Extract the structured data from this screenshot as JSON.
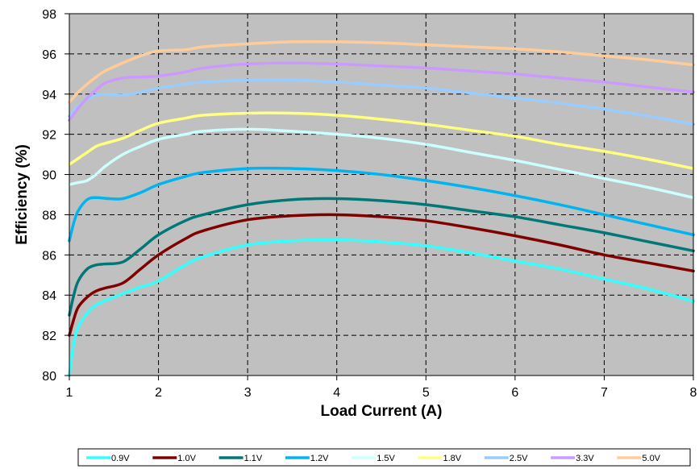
{
  "chart_data": {
    "type": "line",
    "title": "",
    "xlabel": "Load Current (A)",
    "ylabel": "Efficiency  (%)",
    "xlim": [
      1,
      8
    ],
    "ylim": [
      80,
      98
    ],
    "xticks": [
      1,
      2,
      3,
      4,
      5,
      6,
      7,
      8
    ],
    "yticks": [
      80,
      82,
      84,
      86,
      88,
      90,
      92,
      94,
      96,
      98
    ],
    "grid": true,
    "plot_background": "#c0c0c0",
    "legend_position": "bottom",
    "series": [
      {
        "name": "0.9V",
        "color": "#33ffff",
        "x": [
          1,
          1.05,
          1.1,
          1.2,
          1.3,
          1.5,
          1.8,
          2,
          2.3,
          2.5,
          3,
          3.5,
          4,
          4.5,
          5,
          5.5,
          6,
          6.5,
          7,
          7.5,
          8
        ],
        "y": [
          80,
          81.6,
          82.4,
          83.1,
          83.5,
          83.9,
          84.4,
          84.7,
          85.5,
          85.9,
          86.5,
          86.7,
          86.75,
          86.65,
          86.45,
          86.1,
          85.7,
          85.3,
          84.8,
          84.3,
          83.7
        ]
      },
      {
        "name": "1.0V",
        "color": "#800000",
        "x": [
          1,
          1.05,
          1.1,
          1.2,
          1.3,
          1.4,
          1.6,
          1.8,
          2,
          2.3,
          2.5,
          3,
          3.5,
          4,
          4.5,
          5,
          5.5,
          6,
          6.5,
          7,
          7.5,
          8
        ],
        "y": [
          82,
          82.8,
          83.4,
          83.9,
          84.2,
          84.35,
          84.6,
          85.3,
          86.0,
          86.8,
          87.2,
          87.75,
          87.95,
          88.0,
          87.9,
          87.7,
          87.35,
          86.95,
          86.5,
          86.0,
          85.6,
          85.2
        ]
      },
      {
        "name": "1.1V",
        "color": "#007878",
        "x": [
          1,
          1.05,
          1.1,
          1.2,
          1.3,
          1.4,
          1.6,
          1.8,
          2,
          2.3,
          2.5,
          3,
          3.5,
          4,
          4.5,
          5,
          5.5,
          6,
          6.5,
          7,
          7.5,
          8
        ],
        "y": [
          83,
          84.0,
          84.7,
          85.3,
          85.5,
          85.55,
          85.65,
          86.3,
          87.0,
          87.7,
          88.0,
          88.5,
          88.75,
          88.8,
          88.7,
          88.5,
          88.2,
          87.9,
          87.5,
          87.1,
          86.65,
          86.2
        ]
      },
      {
        "name": "1.2V",
        "color": "#00b4f0",
        "x": [
          1,
          1.05,
          1.1,
          1.2,
          1.3,
          1.45,
          1.6,
          1.8,
          2,
          2.3,
          2.5,
          3,
          3.5,
          4,
          4.5,
          5,
          5.5,
          6,
          6.5,
          7,
          7.5,
          8
        ],
        "y": [
          86.7,
          87.6,
          88.2,
          88.75,
          88.85,
          88.8,
          88.8,
          89.1,
          89.5,
          89.9,
          90.1,
          90.3,
          90.3,
          90.2,
          90.0,
          89.7,
          89.35,
          88.95,
          88.5,
          88.0,
          87.5,
          87.0
        ]
      },
      {
        "name": "1.5V",
        "color": "#ccffff",
        "x": [
          1,
          1.1,
          1.2,
          1.3,
          1.4,
          1.6,
          1.8,
          2,
          2.3,
          2.5,
          3,
          3.5,
          4,
          4.5,
          5,
          5.5,
          6,
          6.5,
          7,
          7.5,
          8
        ],
        "y": [
          89.5,
          89.6,
          89.7,
          90.0,
          90.4,
          91.0,
          91.4,
          91.75,
          92.0,
          92.15,
          92.25,
          92.15,
          92.0,
          91.8,
          91.5,
          91.1,
          90.7,
          90.25,
          89.8,
          89.35,
          88.85
        ]
      },
      {
        "name": "1.8V",
        "color": "#ffff80",
        "x": [
          1,
          1.1,
          1.2,
          1.3,
          1.4,
          1.6,
          1.8,
          2,
          2.3,
          2.5,
          3,
          3.5,
          4,
          4.5,
          5,
          5.5,
          6,
          6.5,
          7,
          7.5,
          8
        ],
        "y": [
          90.5,
          90.8,
          91.1,
          91.4,
          91.55,
          91.8,
          92.2,
          92.55,
          92.8,
          92.95,
          93.05,
          93.05,
          92.95,
          92.75,
          92.5,
          92.2,
          91.9,
          91.5,
          91.15,
          90.75,
          90.3
        ]
      },
      {
        "name": "2.5V",
        "color": "#99ccff",
        "x": [
          1,
          1.1,
          1.2,
          1.3,
          1.4,
          1.6,
          1.8,
          2,
          2.3,
          2.5,
          3,
          3.5,
          4,
          4.5,
          5,
          5.5,
          6,
          6.5,
          7,
          7.5,
          8
        ],
        "y": [
          92.9,
          93.4,
          93.75,
          93.95,
          94.0,
          93.95,
          94.1,
          94.3,
          94.5,
          94.6,
          94.7,
          94.7,
          94.6,
          94.45,
          94.3,
          94.05,
          93.8,
          93.55,
          93.25,
          92.9,
          92.5
        ]
      },
      {
        "name": "3.3V",
        "color": "#cc99ff",
        "x": [
          1,
          1.1,
          1.2,
          1.3,
          1.4,
          1.6,
          1.8,
          2,
          2.3,
          2.5,
          3,
          3.5,
          4,
          4.5,
          5,
          5.5,
          6,
          6.5,
          7,
          7.5,
          8
        ],
        "y": [
          92.7,
          93.3,
          93.8,
          94.2,
          94.55,
          94.8,
          94.85,
          94.9,
          95.1,
          95.3,
          95.5,
          95.55,
          95.5,
          95.4,
          95.3,
          95.15,
          95.0,
          94.8,
          94.6,
          94.35,
          94.1
        ]
      },
      {
        "name": "5.0V",
        "color": "#ffcc99",
        "x": [
          1,
          1.1,
          1.2,
          1.3,
          1.4,
          1.6,
          1.8,
          2,
          2.3,
          2.5,
          3,
          3.5,
          4,
          4.5,
          5,
          5.5,
          6,
          6.5,
          7,
          7.5,
          8
        ],
        "y": [
          93.6,
          94.1,
          94.5,
          94.85,
          95.15,
          95.55,
          95.9,
          96.15,
          96.2,
          96.35,
          96.5,
          96.6,
          96.6,
          96.55,
          96.45,
          96.35,
          96.25,
          96.1,
          95.9,
          95.7,
          95.45
        ]
      }
    ]
  }
}
